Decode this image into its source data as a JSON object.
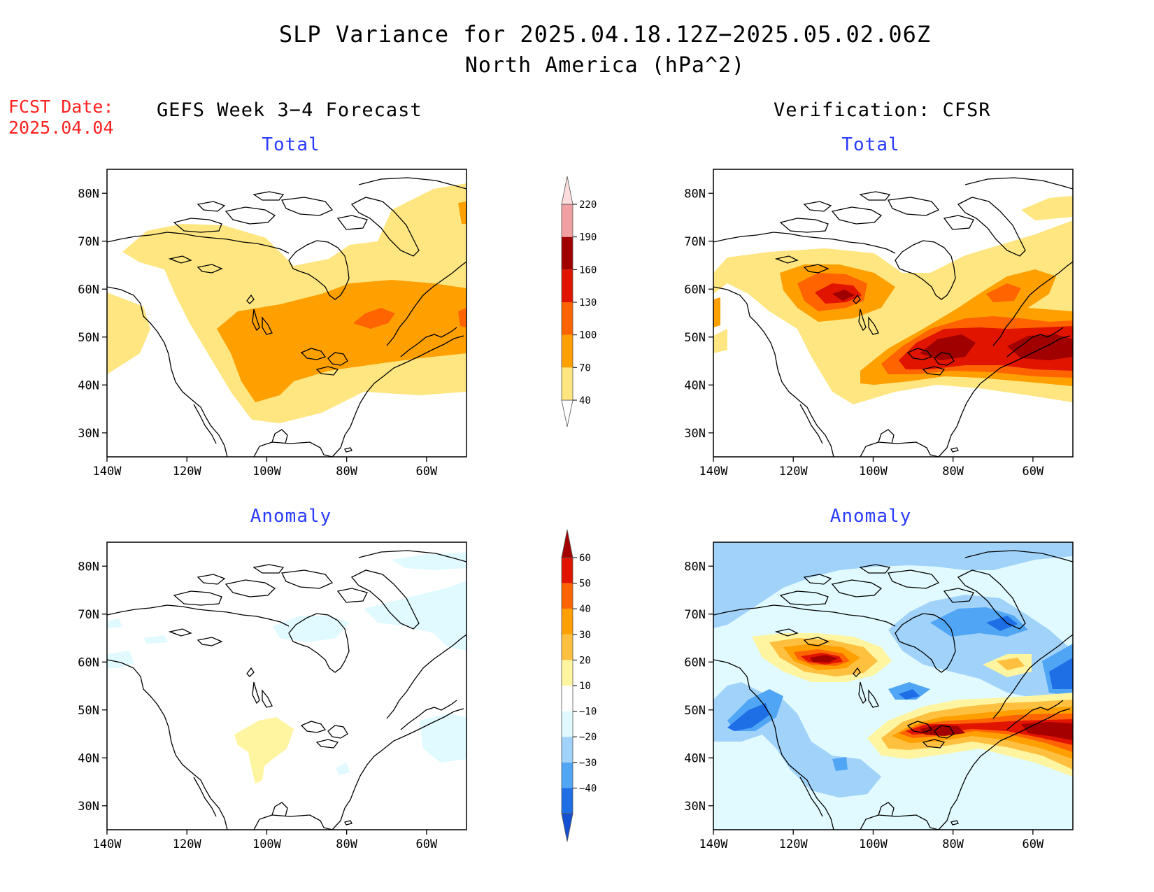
{
  "title": "SLP Variance for 2025.04.18.12Z−2025.05.02.06Z",
  "subtitle": "North America (hPa^2)",
  "fcst_date_label": "FCST Date:",
  "fcst_date_value": "2025.04.04",
  "left_column_title": "GEFS Week 3−4 Forecast",
  "right_column_title": "Verification: CFSR",
  "panel_titles": {
    "total": "Total",
    "anomaly": "Anomaly"
  },
  "axes": {
    "lat_ticks": [
      "80N",
      "70N",
      "60N",
      "50N",
      "40N",
      "30N"
    ],
    "lon_ticks": [
      "140W",
      "120W",
      "100W",
      "80W",
      "60W"
    ],
    "lat_range": [
      25,
      85
    ],
    "lon_range": [
      -140,
      -50
    ]
  },
  "colorbars": {
    "total": {
      "levels": [
        "40",
        "70",
        "100",
        "130",
        "160",
        "190",
        "220"
      ],
      "colors": [
        "#ffe680",
        "#ffa000",
        "#ff6400",
        "#e11400",
        "#a00000",
        "#f0a0a0",
        "#fcdcdc"
      ]
    },
    "anomaly": {
      "levels": [
        "60",
        "50",
        "40",
        "30",
        "20",
        "10",
        "−10",
        "−20",
        "−30",
        "−40"
      ],
      "colors": [
        "#a50000",
        "#e11400",
        "#ff6400",
        "#ffa000",
        "#ffc040",
        "#fff5a0",
        "#ffffff",
        "#e0faff",
        "#a0d2fa",
        "#50a5f5",
        "#1e6ee6",
        "#1450d2"
      ]
    }
  },
  "fields": {
    "color_total_40": "#ffe680",
    "color_total_70": "#ffa000",
    "color_total_100": "#ff6400",
    "color_total_130": "#e11400",
    "color_total_160": "#a00000"
  }
}
